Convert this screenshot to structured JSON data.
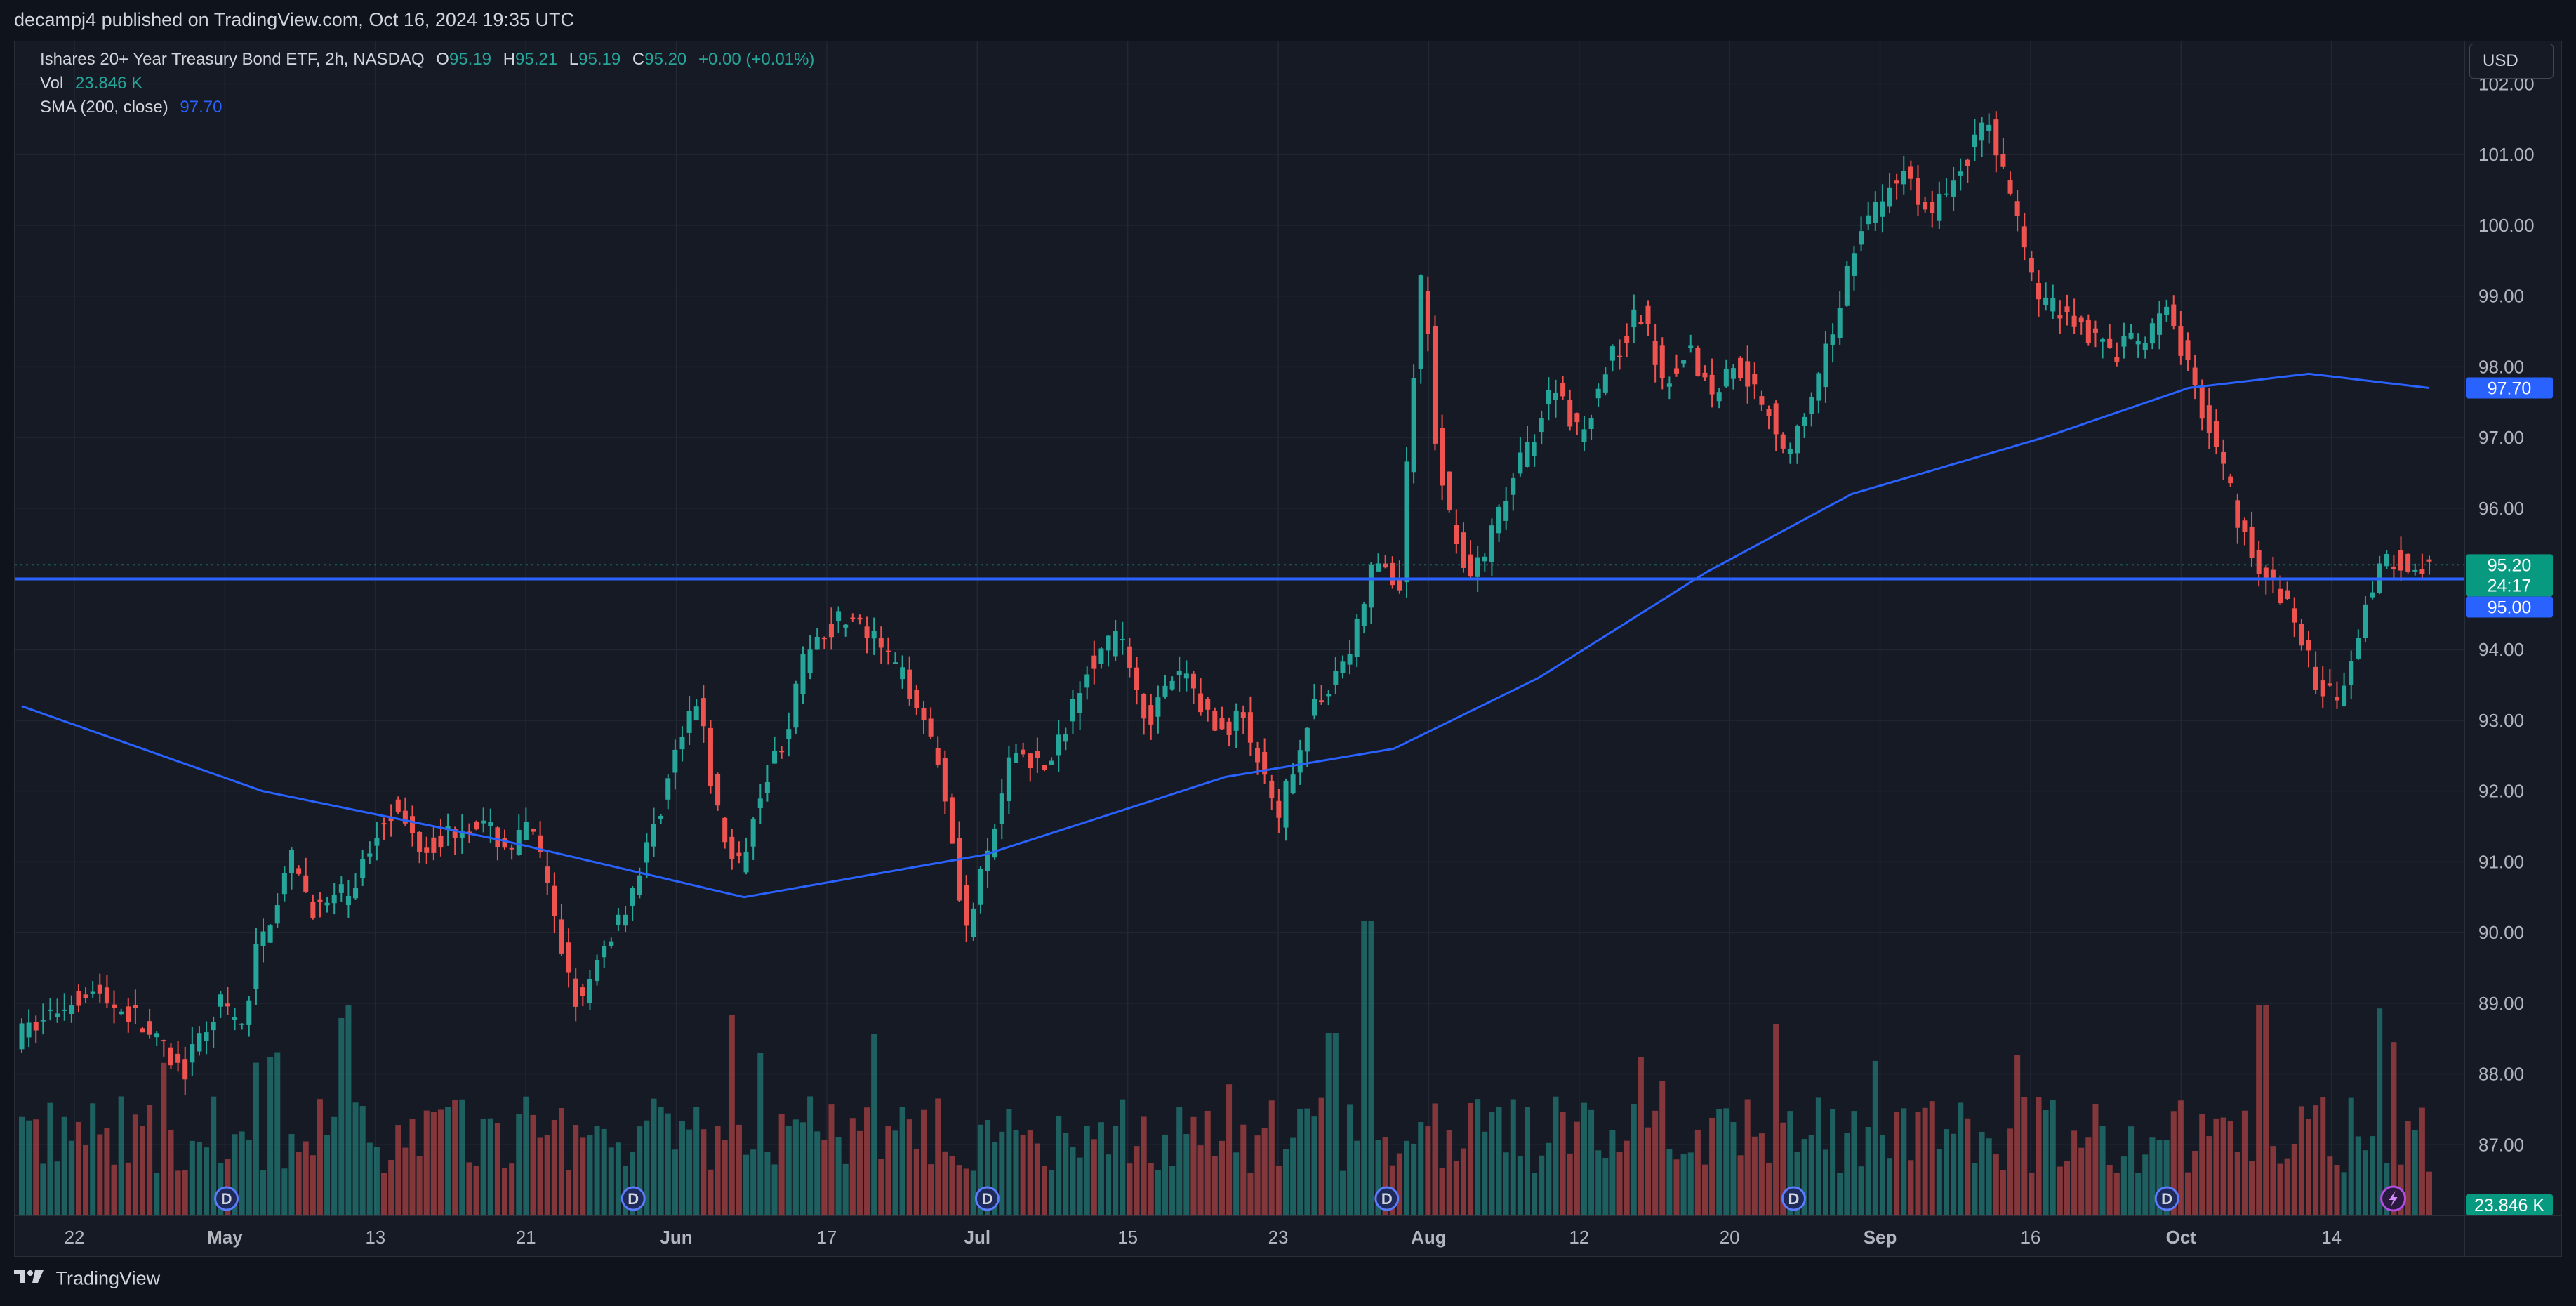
{
  "header": {
    "published_by": "decampj4 published on TradingView.com, Oct 16, 2024 19:35 UTC"
  },
  "legend": {
    "symbol": "Ishares 20+ Year Treasury Bond ETF, 2h, NASDAQ",
    "o_label": "O",
    "o_value": "95.19",
    "h_label": "H",
    "h_value": "95.21",
    "l_label": "L",
    "l_value": "95.19",
    "c_label": "C",
    "c_value": "95.20",
    "change": "+0.00 (+0.01%)",
    "vol_label": "Vol",
    "vol_value": "23.846 K",
    "sma_label": "SMA (200, close)",
    "sma_value": "97.70"
  },
  "currency": "USD",
  "footer": {
    "brand": "TradingView"
  },
  "colors": {
    "up": "#26a69a",
    "down": "#ef5350",
    "sma": "#2962ff",
    "level_line": "#2962ff",
    "background": "#161a25",
    "grid": "#232735"
  },
  "chart_data": {
    "type": "candlestick",
    "y_axis": {
      "range": [
        86.0,
        102.6
      ],
      "ticks": [
        "87.00",
        "88.00",
        "89.00",
        "90.00",
        "91.00",
        "92.00",
        "93.00",
        "94.00",
        "95.00",
        "96.00",
        "97.00",
        "98.00",
        "99.00",
        "100.00",
        "101.00",
        "102.00"
      ]
    },
    "x_axis": {
      "labels": [
        "22",
        "May",
        "13",
        "21",
        "Jun",
        "17",
        "Jul",
        "15",
        "23",
        "Aug",
        "12",
        "20",
        "Sep",
        "16",
        "Oct",
        "14"
      ],
      "bold_labels": [
        "May",
        "Jun",
        "Jul",
        "Aug",
        "Sep",
        "Oct"
      ]
    },
    "price_path": [
      [
        0,
        88.5
      ],
      [
        0.03,
        89.2
      ],
      [
        0.05,
        88.8
      ],
      [
        0.07,
        88.0
      ],
      [
        0.085,
        89.0
      ],
      [
        0.095,
        88.6
      ],
      [
        0.1,
        89.7
      ],
      [
        0.115,
        91.0
      ],
      [
        0.125,
        90.3
      ],
      [
        0.14,
        90.6
      ],
      [
        0.155,
        91.8
      ],
      [
        0.17,
        91.2
      ],
      [
        0.19,
        91.6
      ],
      [
        0.205,
        91.2
      ],
      [
        0.215,
        91.5
      ],
      [
        0.225,
        90.0
      ],
      [
        0.235,
        88.9
      ],
      [
        0.245,
        89.8
      ],
      [
        0.255,
        90.5
      ],
      [
        0.265,
        91.4
      ],
      [
        0.275,
        92.6
      ],
      [
        0.285,
        93.3
      ],
      [
        0.29,
        91.9
      ],
      [
        0.3,
        90.8
      ],
      [
        0.31,
        92.1
      ],
      [
        0.32,
        92.8
      ],
      [
        0.33,
        94.1
      ],
      [
        0.345,
        94.5
      ],
      [
        0.36,
        94.0
      ],
      [
        0.375,
        93.3
      ],
      [
        0.385,
        92.3
      ],
      [
        0.395,
        90.0
      ],
      [
        0.405,
        91.2
      ],
      [
        0.415,
        92.6
      ],
      [
        0.43,
        92.3
      ],
      [
        0.445,
        93.8
      ],
      [
        0.46,
        94.2
      ],
      [
        0.47,
        93.0
      ],
      [
        0.485,
        93.7
      ],
      [
        0.5,
        92.8
      ],
      [
        0.51,
        93.1
      ],
      [
        0.52,
        92.0
      ],
      [
        0.525,
        91.5
      ],
      [
        0.53,
        92.3
      ],
      [
        0.535,
        92.8
      ],
      [
        0.545,
        93.5
      ],
      [
        0.555,
        94.0
      ],
      [
        0.565,
        95.3
      ],
      [
        0.575,
        94.8
      ],
      [
        0.58,
        97.5
      ],
      [
        0.585,
        99.5
      ],
      [
        0.59,
        97.0
      ],
      [
        0.595,
        96.0
      ],
      [
        0.605,
        95.0
      ],
      [
        0.61,
        95.3
      ],
      [
        0.62,
        96.2
      ],
      [
        0.63,
        97.0
      ],
      [
        0.64,
        97.8
      ],
      [
        0.65,
        97.0
      ],
      [
        0.66,
        97.9
      ],
      [
        0.675,
        98.8
      ],
      [
        0.685,
        97.8
      ],
      [
        0.695,
        98.3
      ],
      [
        0.705,
        97.6
      ],
      [
        0.715,
        98.1
      ],
      [
        0.73,
        97.3
      ],
      [
        0.735,
        96.8
      ],
      [
        0.745,
        97.3
      ],
      [
        0.755,
        98.5
      ],
      [
        0.765,
        99.9
      ],
      [
        0.775,
        100.3
      ],
      [
        0.785,
        100.8
      ],
      [
        0.795,
        100.1
      ],
      [
        0.81,
        100.9
      ],
      [
        0.82,
        101.5
      ],
      [
        0.83,
        100.3
      ],
      [
        0.84,
        99.0
      ],
      [
        0.855,
        98.7
      ],
      [
        0.87,
        98.2
      ],
      [
        0.885,
        98.4
      ],
      [
        0.895,
        98.8
      ],
      [
        0.9,
        98.2
      ],
      [
        0.91,
        97.3
      ],
      [
        0.915,
        96.8
      ],
      [
        0.925,
        95.7
      ],
      [
        0.935,
        95.0
      ],
      [
        0.945,
        94.6
      ],
      [
        0.955,
        93.6
      ],
      [
        0.965,
        93.3
      ],
      [
        0.975,
        94.5
      ],
      [
        0.985,
        95.3
      ],
      [
        1.0,
        95.2
      ]
    ],
    "sma_path": [
      [
        0,
        93.2
      ],
      [
        0.1,
        92.0
      ],
      [
        0.2,
        91.3
      ],
      [
        0.3,
        90.5
      ],
      [
        0.4,
        91.1
      ],
      [
        0.5,
        92.2
      ],
      [
        0.57,
        92.6
      ],
      [
        0.63,
        93.6
      ],
      [
        0.7,
        95.1
      ],
      [
        0.76,
        96.2
      ],
      [
        0.84,
        97.0
      ],
      [
        0.9,
        97.7
      ],
      [
        0.95,
        97.9
      ],
      [
        1.0,
        97.7
      ]
    ],
    "last_price": "95.20",
    "countdown": "24:17",
    "horizontal_level": "95.00",
    "sma_current": "97.70",
    "volume_current": "23.846 K",
    "dividend_markers": [
      "D",
      "D",
      "D",
      "D",
      "D",
      "D"
    ],
    "dividend_positions": [
      0.085,
      0.254,
      0.401,
      0.567,
      0.736,
      0.891
    ]
  }
}
